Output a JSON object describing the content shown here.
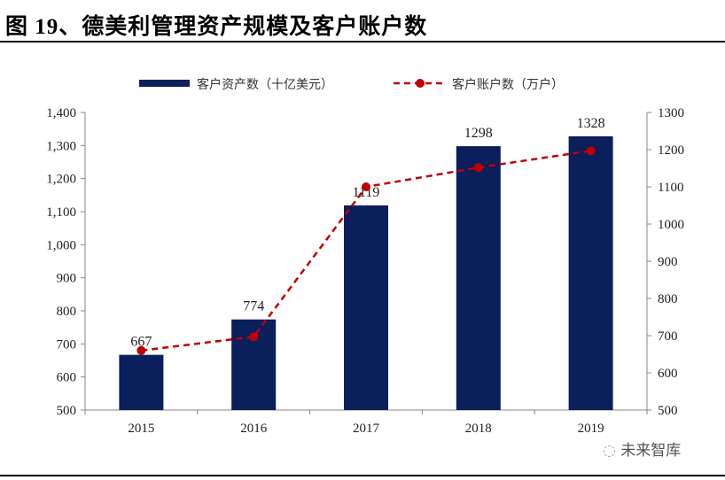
{
  "title": "图 19、德美利管理资产规模及客户账户数",
  "watermark": "未来智库",
  "chart_data": {
    "type": "bar+line",
    "categories": [
      "2015",
      "2016",
      "2017",
      "2018",
      "2019"
    ],
    "series": [
      {
        "name": "客户资产数（十亿美元）",
        "type": "bar",
        "axis": "left",
        "color": "#0a1f5c",
        "values": [
          667,
          774,
          1119,
          1298,
          1328
        ],
        "data_labels": [
          "667",
          "774",
          "1119",
          "1298",
          "1328"
        ]
      },
      {
        "name": "客户账户数（万户）",
        "type": "line",
        "axis": "right",
        "color": "#c00000",
        "style": "dashed",
        "marker": "circle",
        "values": [
          660,
          697,
          1100,
          1152,
          1197
        ]
      }
    ],
    "left_axis": {
      "range": [
        500,
        1400
      ],
      "ticks": [
        "500",
        "600",
        "700",
        "800",
        "900",
        "1,000",
        "1,100",
        "1,200",
        "1,300",
        "1,400"
      ]
    },
    "right_axis": {
      "range": [
        500,
        1300
      ],
      "ticks": [
        "500",
        "600",
        "700",
        "800",
        "900",
        "1000",
        "1100",
        "1200",
        "1300"
      ]
    },
    "legend": "top",
    "grid": false
  }
}
